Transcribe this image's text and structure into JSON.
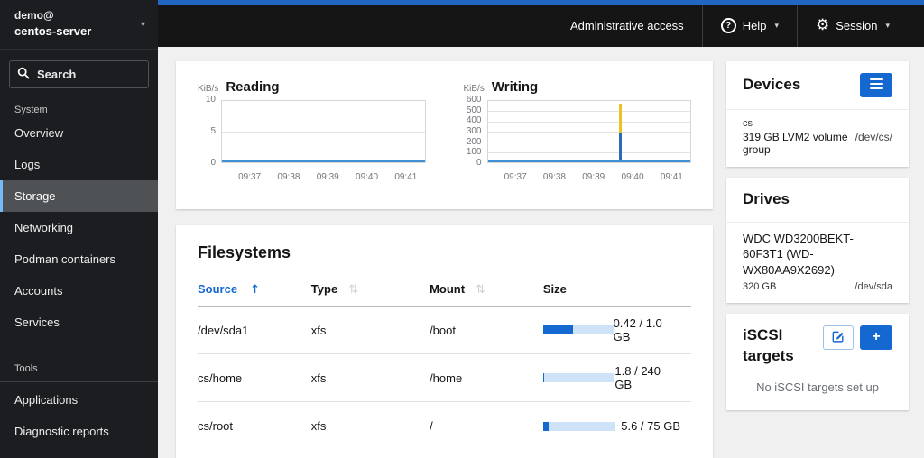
{
  "colors": {
    "accent-blue": "#1468d0",
    "top-strip": "#2166c2",
    "active-border": "#73bcf7",
    "series-line": "#3e8fd4",
    "spike-blue": "#2b6cb8",
    "spike-yellow": "#f0c220",
    "bar-track": "#cfe3f8"
  },
  "icons": {
    "caret_down": "▾",
    "gear": "⚙",
    "help": "?",
    "plus": "+",
    "sort_asc": "↑",
    "sortable": "⇅"
  },
  "sidebar": {
    "user_line1": "demo@",
    "user_line2": "centos-server",
    "search_placeholder": "Search",
    "sections": [
      {
        "label": "System",
        "items": [
          "Overview",
          "Logs",
          "Storage",
          "Networking",
          "Podman containers",
          "Accounts",
          "Services"
        ],
        "active_item": "Storage"
      },
      {
        "label": "Tools",
        "items": [
          "Applications",
          "Diagnostic reports"
        ]
      }
    ]
  },
  "masthead": {
    "admin_access_label": "Administrative access",
    "help_label": "Help",
    "session_label": "Session"
  },
  "chart_data": [
    {
      "type": "line",
      "title": "Reading",
      "ylabel": "KiB/s",
      "x": [
        "09:37",
        "09:38",
        "09:39",
        "09:40",
        "09:41"
      ],
      "yticks": [
        "10",
        "5",
        "0"
      ],
      "ylim": [
        0,
        10
      ],
      "series": [
        {
          "name": "reading",
          "values": [
            0,
            0,
            0,
            0,
            0
          ]
        }
      ],
      "grid": false,
      "legend": "none"
    },
    {
      "type": "line",
      "title": "Writing",
      "ylabel": "KiB/s",
      "x": [
        "09:37",
        "09:38",
        "09:39",
        "09:40",
        "09:41"
      ],
      "yticks": [
        "600",
        "500",
        "400",
        "300",
        "200",
        "100",
        "0"
      ],
      "ylim": [
        0,
        600
      ],
      "series": [
        {
          "name": "writing",
          "values": [
            0,
            0,
            0,
            575,
            0
          ]
        }
      ],
      "spike": {
        "x_position_between": "09:39 and 09:40",
        "blue_portion_top": 290,
        "yellow_portion_top": 575
      },
      "grid": true,
      "legend": "none"
    }
  ],
  "filesystems": {
    "title": "Filesystems",
    "columns": [
      "Source",
      "Type",
      "Mount",
      "Size"
    ],
    "sorted_by": "Source",
    "sort_direction": "ascending",
    "rows": [
      {
        "source": "/dev/sda1",
        "type": "xfs",
        "mount": "/boot",
        "used_percent": 42,
        "size": "0.42 / 1.0 GB"
      },
      {
        "source": "cs/home",
        "type": "xfs",
        "mount": "/home",
        "used_percent": 1,
        "size": "1.8 / 240 GB"
      },
      {
        "source": "cs/root",
        "type": "xfs",
        "mount": "/",
        "used_percent": 8,
        "size": "5.6 / 75 GB"
      }
    ]
  },
  "devices_panel": {
    "title": "Devices",
    "item": {
      "name": "cs",
      "desc": "319 GB LVM2 volume group",
      "path": "/dev/cs/"
    }
  },
  "drives_panel": {
    "title": "Drives",
    "item": {
      "name": "WDC WD3200BEKT-60F3T1 (WD-WX80AA9X2692)",
      "size": "320 GB",
      "path": "/dev/sda"
    }
  },
  "iscsi_panel": {
    "title": "iSCSI targets",
    "empty_text": "No iSCSI targets set up"
  }
}
